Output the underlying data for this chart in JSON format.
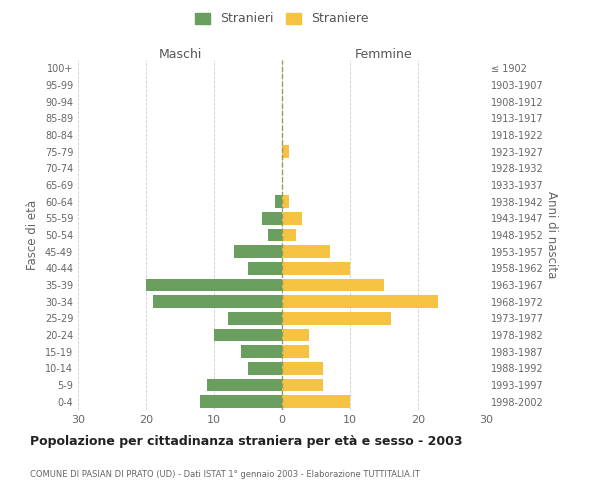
{
  "age_groups": [
    "0-4",
    "5-9",
    "10-14",
    "15-19",
    "20-24",
    "25-29",
    "30-34",
    "35-39",
    "40-44",
    "45-49",
    "50-54",
    "55-59",
    "60-64",
    "65-69",
    "70-74",
    "75-79",
    "80-84",
    "85-89",
    "90-94",
    "95-99",
    "100+"
  ],
  "birth_years": [
    "1998-2002",
    "1993-1997",
    "1988-1992",
    "1983-1987",
    "1978-1982",
    "1973-1977",
    "1968-1972",
    "1963-1967",
    "1958-1962",
    "1953-1957",
    "1948-1952",
    "1943-1947",
    "1938-1942",
    "1933-1937",
    "1928-1932",
    "1923-1927",
    "1918-1922",
    "1913-1917",
    "1908-1912",
    "1903-1907",
    "≤ 1902"
  ],
  "maschi": [
    12,
    11,
    5,
    6,
    10,
    8,
    19,
    20,
    5,
    7,
    2,
    3,
    1,
    0,
    0,
    0,
    0,
    0,
    0,
    0,
    0
  ],
  "femmine": [
    10,
    6,
    6,
    4,
    4,
    16,
    23,
    15,
    10,
    7,
    2,
    3,
    1,
    0,
    0,
    1,
    0,
    0,
    0,
    0,
    0
  ],
  "color_maschi": "#6a9e5e",
  "color_femmine": "#f5c242",
  "title": "Popolazione per cittadinanza straniera per età e sesso - 2003",
  "subtitle": "COMUNE DI PASIAN DI PRATO (UD) - Dati ISTAT 1° gennaio 2003 - Elaborazione TUTTITALIA.IT",
  "xlabel_left": "Maschi",
  "xlabel_right": "Femmine",
  "ylabel_left": "Fasce di età",
  "ylabel_right": "Anni di nascita",
  "legend_maschi": "Stranieri",
  "legend_femmine": "Straniere",
  "xlim": 30,
  "background_color": "#ffffff",
  "grid_color": "#cccccc"
}
